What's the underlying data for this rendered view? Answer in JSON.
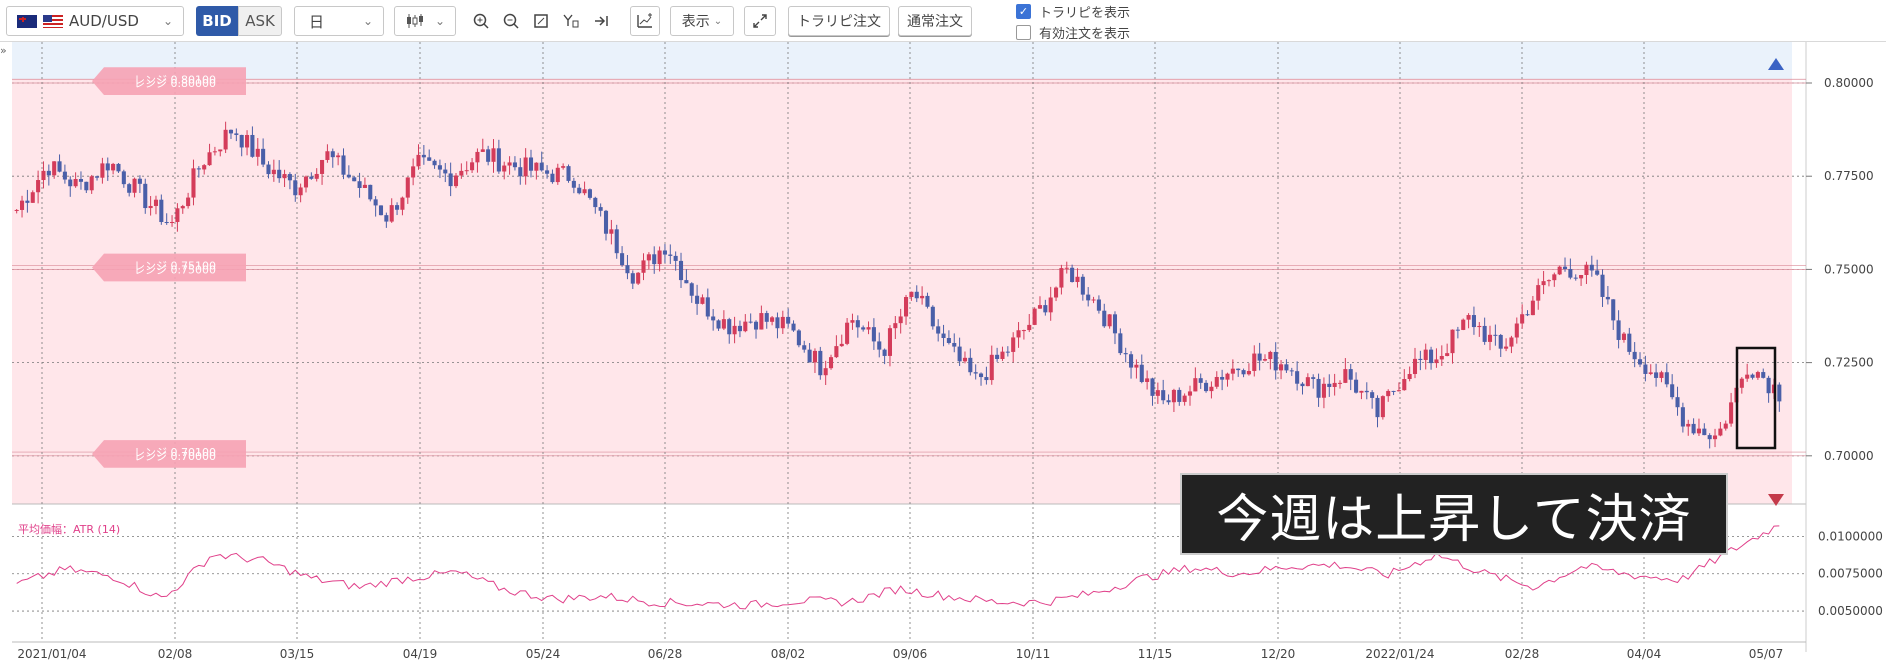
{
  "toolbar": {
    "symbol": "AUD/USD",
    "bid_label": "BID",
    "ask_label": "ASK",
    "period": "日",
    "display_label": "表示",
    "traripi_order_label": "トラリピ注文",
    "normal_order_label": "通常注文",
    "show_traripi_label": "トラリピを表示",
    "show_traripi_checked": true,
    "show_active_orders_label": "有効注文を表示",
    "show_active_orders_checked": false,
    "icons": [
      "zoom-in-icon",
      "zoom-out-icon",
      "fit-icon",
      "crosshair-icon",
      "scroll-to-end-icon",
      "add-indicator-icon",
      "fullscreen-icon"
    ]
  },
  "range_tags": [
    {
      "label": "レンジ 0.80000",
      "price": 0.8
    },
    {
      "label": "レンジ 0.80100",
      "price": 0.801
    },
    {
      "label": "レンジ 0.75000",
      "price": 0.75
    },
    {
      "label": "レンジ 0.75100",
      "price": 0.751
    },
    {
      "label": "レンジ 0.70000",
      "price": 0.7
    },
    {
      "label": "レンジ 0.70100",
      "price": 0.701
    }
  ],
  "indicator_label": "平均価幅：ATR (14)",
  "caption": "今週は上昇して決済",
  "colors": {
    "up": "#d43c5a",
    "down": "#4a5fa8",
    "range_fill": "#ffe6ea",
    "atr": "#e0408a"
  },
  "chart_data": {
    "type": "candlestick",
    "price_axis": {
      "ticks": [
        "0.80000",
        "0.77500",
        "0.75000",
        "0.72500",
        "0.70000"
      ],
      "range": [
        0.686,
        0.811
      ]
    },
    "atr_axis": {
      "ticks": [
        "0.0100000",
        "0.0075000",
        "0.0050000"
      ],
      "range": [
        0.004,
        0.0115
      ]
    },
    "x_labels": [
      "2021/01/04",
      "02/08",
      "03/15",
      "04/19",
      "05/24",
      "06/28",
      "08/02",
      "09/06",
      "10/11",
      "11/15",
      "12/20",
      "2022/01/24",
      "02/28",
      "04/04",
      "05/07"
    ],
    "close_anchors": [
      0.766,
      0.778,
      0.772,
      0.779,
      0.77,
      0.762,
      0.779,
      0.788,
      0.778,
      0.772,
      0.781,
      0.773,
      0.764,
      0.778,
      0.775,
      0.781,
      0.778,
      0.776,
      0.775,
      0.762,
      0.748,
      0.757,
      0.742,
      0.735,
      0.737,
      0.734,
      0.724,
      0.737,
      0.728,
      0.744,
      0.73,
      0.72,
      0.728,
      0.738,
      0.75,
      0.74,
      0.726,
      0.714,
      0.718,
      0.722,
      0.726,
      0.725,
      0.718,
      0.722,
      0.711,
      0.724,
      0.727,
      0.737,
      0.728,
      0.742,
      0.751,
      0.748,
      0.73,
      0.722,
      0.709,
      0.705,
      0.725,
      0.717
    ],
    "atr_anchors": [
      0.0068,
      0.0078,
      0.0073,
      0.0058,
      0.0088,
      0.0084,
      0.0072,
      0.0066,
      0.0072,
      0.0076,
      0.0064,
      0.0058,
      0.006,
      0.0056,
      0.0055,
      0.0054,
      0.0057,
      0.0056,
      0.0065,
      0.006,
      0.0056,
      0.0056,
      0.0062,
      0.0072,
      0.0079,
      0.0075,
      0.008,
      0.0081,
      0.0074,
      0.0088,
      0.0075,
      0.0066,
      0.008,
      0.0074,
      0.0071,
      0.009,
      0.0108
    ]
  }
}
